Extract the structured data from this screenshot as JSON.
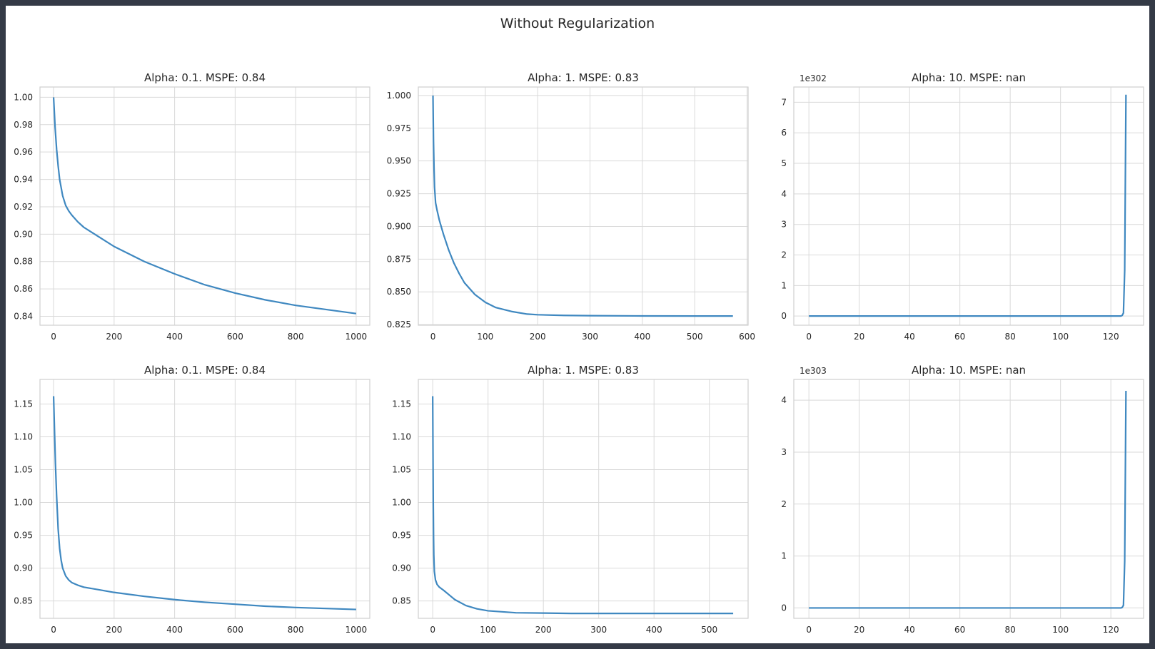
{
  "figure": {
    "suptitle": "Without Regularization"
  },
  "style": {
    "line_color": "#3f88c0",
    "grid_color": "#d9d9d9",
    "background": "#ffffff"
  },
  "chart_data": [
    {
      "type": "line",
      "title": "Alpha: 0.1. MSPE: 0.84",
      "xlim": [
        -45,
        1045
      ],
      "ylim": [
        0.8335,
        1.0075
      ],
      "xticks": [
        0,
        200,
        400,
        600,
        800,
        1000
      ],
      "xtick_labels": [
        "0",
        "200",
        "400",
        "600",
        "800",
        "1000"
      ],
      "yticks": [
        0.84,
        0.86,
        0.88,
        0.9,
        0.92,
        0.94,
        0.96,
        0.98,
        1.0
      ],
      "ytick_labels": [
        "0.84",
        "0.86",
        "0.88",
        "0.90",
        "0.92",
        "0.94",
        "0.96",
        "0.98",
        "1.00"
      ],
      "offset_text": "",
      "series": [
        {
          "x": [
            0,
            5,
            10,
            15,
            20,
            30,
            40,
            50,
            60,
            80,
            100,
            150,
            200,
            300,
            400,
            500,
            600,
            700,
            800,
            900,
            1000
          ],
          "y": [
            1.0,
            0.978,
            0.962,
            0.95,
            0.94,
            0.928,
            0.921,
            0.917,
            0.914,
            0.909,
            0.905,
            0.898,
            0.891,
            0.88,
            0.871,
            0.863,
            0.857,
            0.852,
            0.848,
            0.845,
            0.842
          ]
        }
      ]
    },
    {
      "type": "line",
      "title": "Alpha: 1. MSPE: 0.83",
      "xlim": [
        -28,
        602
      ],
      "ylim": [
        0.8245,
        1.0065
      ],
      "xticks": [
        0,
        100,
        200,
        300,
        400,
        500,
        600
      ],
      "xtick_labels": [
        "0",
        "100",
        "200",
        "300",
        "400",
        "500",
        "600"
      ],
      "yticks": [
        0.825,
        0.85,
        0.875,
        0.9,
        0.925,
        0.95,
        0.975,
        1.0
      ],
      "ytick_labels": [
        "0.825",
        "0.850",
        "0.875",
        "0.900",
        "0.925",
        "0.950",
        "0.975",
        "1.000"
      ],
      "offset_text": "",
      "series": [
        {
          "x": [
            0,
            1,
            2,
            3,
            5,
            8,
            12,
            20,
            30,
            40,
            50,
            60,
            80,
            100,
            120,
            150,
            180,
            200,
            250,
            300,
            400,
            500,
            573
          ],
          "y": [
            1.0,
            0.965,
            0.945,
            0.93,
            0.918,
            0.912,
            0.905,
            0.894,
            0.882,
            0.872,
            0.864,
            0.857,
            0.848,
            0.842,
            0.838,
            0.835,
            0.833,
            0.8325,
            0.832,
            0.8318,
            0.8316,
            0.8315,
            0.8315
          ]
        }
      ]
    },
    {
      "type": "line",
      "title": "Alpha: 10. MSPE: nan",
      "xlim": [
        -6,
        133
      ],
      "ylim": [
        -0.3,
        7.5
      ],
      "xticks": [
        0,
        20,
        40,
        60,
        80,
        100,
        120
      ],
      "xtick_labels": [
        "0",
        "20",
        "40",
        "60",
        "80",
        "100",
        "120"
      ],
      "yticks": [
        0,
        1,
        2,
        3,
        4,
        5,
        6,
        7
      ],
      "ytick_labels": [
        "0",
        "1",
        "2",
        "3",
        "4",
        "5",
        "6",
        "7"
      ],
      "offset_text": "1e302",
      "series": [
        {
          "x": [
            0,
            20,
            40,
            60,
            80,
            100,
            120,
            124,
            124.5,
            125,
            125.5,
            126
          ],
          "y": [
            0,
            0,
            0,
            0,
            0,
            0,
            0,
            0,
            0.02,
            0.1,
            1.5,
            7.25
          ]
        }
      ]
    },
    {
      "type": "line",
      "title": "Alpha: 0.1. MSPE: 0.84",
      "xlim": [
        -45,
        1045
      ],
      "ylim": [
        0.8235,
        1.1875
      ],
      "xticks": [
        0,
        200,
        400,
        600,
        800,
        1000
      ],
      "xtick_labels": [
        "0",
        "200",
        "400",
        "600",
        "800",
        "1000"
      ],
      "yticks": [
        0.85,
        0.9,
        0.95,
        1.0,
        1.05,
        1.1,
        1.15
      ],
      "ytick_labels": [
        "0.85",
        "0.90",
        "0.95",
        "1.00",
        "1.05",
        "1.10",
        "1.15"
      ],
      "offset_text": "",
      "series": [
        {
          "x": [
            0,
            3,
            6,
            10,
            15,
            20,
            25,
            30,
            40,
            50,
            60,
            80,
            100,
            150,
            200,
            300,
            400,
            500,
            600,
            700,
            800,
            900,
            1000
          ],
          "y": [
            1.162,
            1.11,
            1.06,
            1.01,
            0.96,
            0.93,
            0.912,
            0.9,
            0.888,
            0.882,
            0.878,
            0.874,
            0.871,
            0.867,
            0.863,
            0.857,
            0.852,
            0.848,
            0.845,
            0.842,
            0.84,
            0.8385,
            0.837
          ]
        }
      ]
    },
    {
      "type": "line",
      "title": "Alpha: 1. MSPE: 0.83",
      "xlim": [
        -26,
        570
      ],
      "ylim": [
        0.8235,
        1.1875
      ],
      "xticks": [
        0,
        100,
        200,
        300,
        400,
        500
      ],
      "xtick_labels": [
        "0",
        "100",
        "200",
        "300",
        "400",
        "500"
      ],
      "yticks": [
        0.85,
        0.9,
        0.95,
        1.0,
        1.05,
        1.1,
        1.15
      ],
      "ytick_labels": [
        "0.85",
        "0.90",
        "0.95",
        "1.00",
        "1.05",
        "1.10",
        "1.15"
      ],
      "offset_text": "",
      "series": [
        {
          "x": [
            0,
            0.5,
            1,
            1.5,
            2,
            3,
            5,
            8,
            12,
            20,
            30,
            40,
            60,
            80,
            100,
            150,
            200,
            250,
            300,
            400,
            543
          ],
          "y": [
            1.162,
            1.08,
            1.0,
            0.95,
            0.92,
            0.895,
            0.882,
            0.875,
            0.871,
            0.866,
            0.859,
            0.852,
            0.843,
            0.838,
            0.835,
            0.832,
            0.8315,
            0.831,
            0.831,
            0.831,
            0.831
          ]
        }
      ]
    },
    {
      "type": "line",
      "title": "Alpha: 10. MSPE: nan",
      "xlim": [
        -6,
        133
      ],
      "ylim": [
        -0.2,
        4.4
      ],
      "xticks": [
        0,
        20,
        40,
        60,
        80,
        100,
        120
      ],
      "xtick_labels": [
        "0",
        "20",
        "40",
        "60",
        "80",
        "100",
        "120"
      ],
      "yticks": [
        0,
        1,
        2,
        3,
        4
      ],
      "ytick_labels": [
        "0",
        "1",
        "2",
        "3",
        "4"
      ],
      "offset_text": "1e303",
      "series": [
        {
          "x": [
            0,
            20,
            40,
            60,
            80,
            100,
            120,
            124,
            124.5,
            125,
            125.5,
            126
          ],
          "y": [
            0,
            0,
            0,
            0,
            0,
            0,
            0,
            0,
            0.01,
            0.05,
            0.9,
            4.18
          ]
        }
      ]
    }
  ]
}
